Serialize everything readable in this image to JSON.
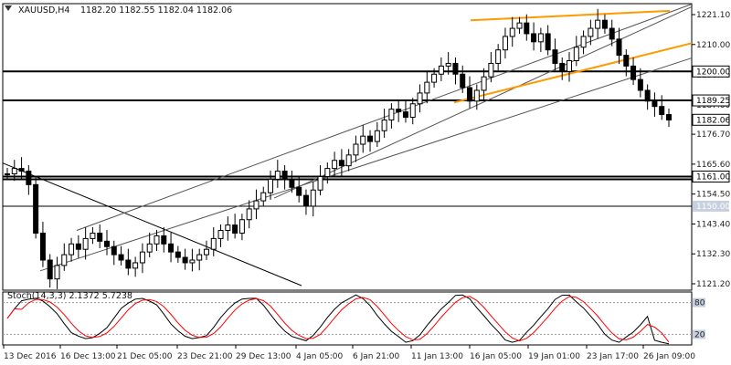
{
  "header": {
    "symbol": "XAUUSD,H4",
    "ohlc": "1182.20 1182.55 1182.04 1182.06"
  },
  "indicator": {
    "label": "Stoch(14,3,3) 2.1372 5.7238",
    "ylim": [
      0,
      100
    ],
    "scale_labels": [
      "80",
      "20"
    ]
  },
  "colors": {
    "background": "#ffffff",
    "candle": "#000000",
    "trendline": "#000000",
    "channel": "#555555",
    "wedge": "#ff9900",
    "stoch_main": "#000000",
    "stoch_signal": "#ff0000",
    "last_price_box": "#000000",
    "level_1150_box": "#c8d0e0"
  },
  "chart_data": {
    "type": "candlestick",
    "ylim": [
      1121.2,
      1221.1
    ],
    "price_ticks": [
      "1221.10",
      "1210.00",
      "1198.70",
      "1187.60",
      "1176.70",
      "1165.60",
      "1154.50",
      "1143.40",
      "1132.30",
      "1121.20"
    ],
    "x_ticks": [
      "13 Dec 2016",
      "16 Dec 13:00",
      "21 Dec 05:00",
      "23 Dec 21:00",
      "29 Dec 13:00",
      "4 Jan 05:00",
      "6 Jan 21:00",
      "11 Jan 13:00",
      "16 Jan 05:00",
      "19 Jan 01:00",
      "23 Jan 17:00",
      "26 Jan 09:00"
    ],
    "levels": [
      {
        "value": 1200.0,
        "label": "1200.00",
        "style": "bold"
      },
      {
        "value": 1189.25,
        "label": "1189.25",
        "style": "bold"
      },
      {
        "value": 1161.0,
        "label": "1161.00",
        "style": "bold"
      },
      {
        "value": 1150.0,
        "label": "1150.00",
        "style": "thin"
      }
    ],
    "last_price": "1182.06",
    "close_series": [
      1162,
      1164,
      1163,
      1158,
      1140,
      1130,
      1123,
      1128,
      1132,
      1136,
      1134,
      1138,
      1140,
      1137,
      1135,
      1132,
      1130,
      1127,
      1129,
      1133,
      1136,
      1139,
      1136,
      1133,
      1131,
      1129,
      1130,
      1132,
      1134,
      1138,
      1141,
      1143,
      1140,
      1145,
      1149,
      1152,
      1155,
      1160,
      1163,
      1160,
      1157,
      1154,
      1150,
      1156,
      1161,
      1164,
      1167,
      1165,
      1169,
      1173,
      1176,
      1174,
      1178,
      1182,
      1186,
      1185,
      1183,
      1188,
      1192,
      1196,
      1199,
      1202,
      1203,
      1199,
      1194,
      1189,
      1193,
      1198,
      1203,
      1208,
      1213,
      1216,
      1218,
      1214,
      1211,
      1214,
      1208,
      1203,
      1200,
      1204,
      1209,
      1213,
      1216,
      1219,
      1216,
      1212,
      1206,
      1202,
      1197,
      1193,
      1189,
      1187,
      1184,
      1182
    ]
  }
}
